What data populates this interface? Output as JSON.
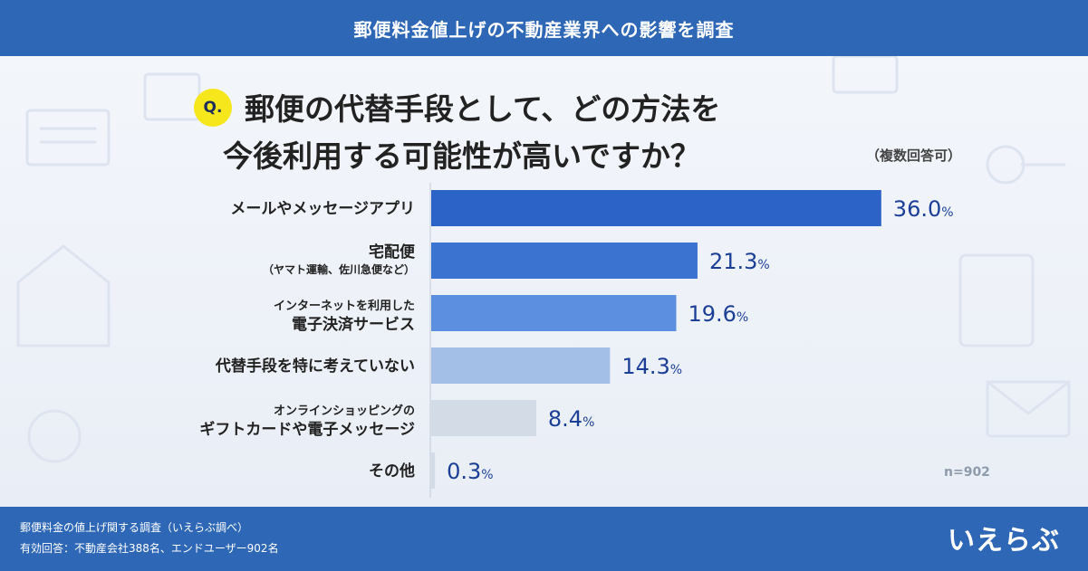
{
  "header": {
    "title": "郵便料金値上げの不動産業界への影響を調査"
  },
  "question": {
    "badge": "Q.",
    "line1": "郵便の代替手段として、どの方法を",
    "line2": "今後利用する可能性が高いですか？",
    "note": "（複数回答可）"
  },
  "sample": "n=902",
  "chart_data": {
    "type": "bar",
    "orientation": "horizontal",
    "categories": [
      [
        "メールやメッセージアプリ"
      ],
      [
        "宅配便",
        "（ヤマト運輸、佐川急便など）"
      ],
      [
        "インターネットを利用した",
        "電子決済サービス"
      ],
      [
        "代替手段を特に考えていない"
      ],
      [
        "オンラインショッピングの",
        "ギフトカードや電子メッセージ"
      ],
      [
        "その他"
      ]
    ],
    "values": [
      36.0,
      21.3,
      19.6,
      14.3,
      8.4,
      0.3
    ],
    "value_labels": [
      "36.0",
      "21.3",
      "19.6",
      "14.3",
      "8.4",
      "0.3"
    ],
    "unit": "%",
    "colors": [
      "#2b63c6",
      "#3a73d0",
      "#5c8fe0",
      "#a3bfe8",
      "#d3dbe7",
      "#d3dbe7"
    ],
    "label_color": "#1b3f96",
    "grid": false
  },
  "footer": {
    "line1": "郵便料金の値上げ関する調査（いえらぶ調べ）",
    "line2": "有効回答：不動産会社388名、エンドユーザー902名",
    "logo": "いえらぶ"
  }
}
